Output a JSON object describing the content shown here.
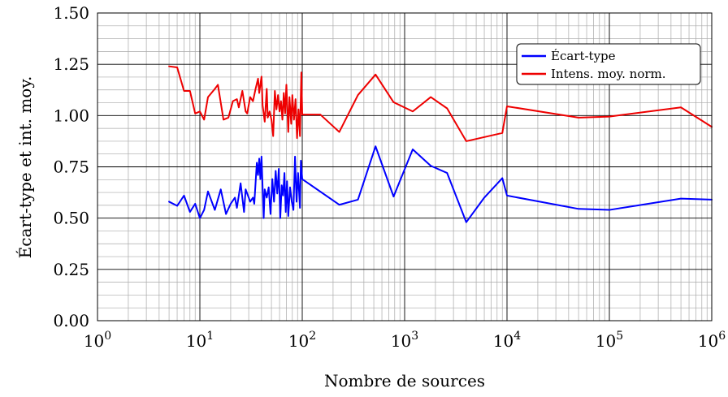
{
  "chart_data": {
    "type": "line",
    "xlabel": "Nombre de sources",
    "ylabel": "Écart-type et int. moy.",
    "xscale": "log",
    "xlim": [
      1,
      1000000
    ],
    "ylim": [
      0,
      1.5
    ],
    "grid": true,
    "legend_position": "top-right",
    "x_ticks": [
      {
        "base": "10",
        "exp": "0",
        "value": 1
      },
      {
        "base": "10",
        "exp": "1",
        "value": 10
      },
      {
        "base": "10",
        "exp": "2",
        "value": 100
      },
      {
        "base": "10",
        "exp": "3",
        "value": 1000
      },
      {
        "base": "10",
        "exp": "4",
        "value": 10000
      },
      {
        "base": "10",
        "exp": "5",
        "value": 100000
      },
      {
        "base": "10",
        "exp": "6",
        "value": 1000000
      }
    ],
    "y_ticks": [
      {
        "label": "0.00",
        "value": 0
      },
      {
        "label": "0.25",
        "value": 0.25
      },
      {
        "label": "0.50",
        "value": 0.5
      },
      {
        "label": "0.75",
        "value": 0.75
      },
      {
        "label": "1.00",
        "value": 1.0
      },
      {
        "label": "1.25",
        "value": 1.25
      },
      {
        "label": "1.50",
        "value": 1.5
      }
    ],
    "series": [
      {
        "name": "Écart-type",
        "color": "#0000ff",
        "points": [
          [
            5,
            0.58
          ],
          [
            6,
            0.56
          ],
          [
            7,
            0.61
          ],
          [
            8,
            0.53
          ],
          [
            9,
            0.57
          ],
          [
            10,
            0.5
          ],
          [
            11,
            0.54
          ],
          [
            12,
            0.63
          ],
          [
            14,
            0.54
          ],
          [
            16,
            0.64
          ],
          [
            18,
            0.52
          ],
          [
            20,
            0.57
          ],
          [
            22,
            0.6
          ],
          [
            23,
            0.55
          ],
          [
            24,
            0.61
          ],
          [
            25,
            0.67
          ],
          [
            27,
            0.53
          ],
          [
            28,
            0.64
          ],
          [
            30,
            0.6
          ],
          [
            31,
            0.58
          ],
          [
            33,
            0.6
          ],
          [
            34,
            0.57
          ],
          [
            36,
            0.77
          ],
          [
            37,
            0.71
          ],
          [
            38,
            0.79
          ],
          [
            39,
            0.69
          ],
          [
            40,
            0.8
          ],
          [
            42,
            0.5
          ],
          [
            43,
            0.64
          ],
          [
            45,
            0.6
          ],
          [
            47,
            0.65
          ],
          [
            49,
            0.52
          ],
          [
            51,
            0.69
          ],
          [
            53,
            0.58
          ],
          [
            55,
            0.73
          ],
          [
            57,
            0.62
          ],
          [
            59,
            0.74
          ],
          [
            61,
            0.5
          ],
          [
            63,
            0.66
          ],
          [
            65,
            0.61
          ],
          [
            67,
            0.72
          ],
          [
            69,
            0.53
          ],
          [
            71,
            0.68
          ],
          [
            73,
            0.51
          ],
          [
            76,
            0.65
          ],
          [
            79,
            0.58
          ],
          [
            82,
            0.54
          ],
          [
            85,
            0.8
          ],
          [
            88,
            0.58
          ],
          [
            91,
            0.72
          ],
          [
            95,
            0.55
          ],
          [
            97,
            0.78
          ],
          [
            100,
            0.69
          ],
          [
            230,
            0.565
          ],
          [
            350,
            0.59
          ],
          [
            520,
            0.85
          ],
          [
            780,
            0.605
          ],
          [
            1200,
            0.835
          ],
          [
            1800,
            0.755
          ],
          [
            2600,
            0.72
          ],
          [
            4000,
            0.48
          ],
          [
            6000,
            0.6
          ],
          [
            9000,
            0.695
          ],
          [
            10000,
            0.61
          ],
          [
            50000,
            0.545
          ],
          [
            100000,
            0.54
          ],
          [
            500000,
            0.595
          ],
          [
            1000000,
            0.59
          ]
        ]
      },
      {
        "name": "Intens. moy. norm.",
        "color": "#ee0000",
        "points": [
          [
            5,
            1.24
          ],
          [
            6,
            1.235
          ],
          [
            7,
            1.12
          ],
          [
            8,
            1.12
          ],
          [
            9,
            1.01
          ],
          [
            10,
            1.02
          ],
          [
            11,
            0.98
          ],
          [
            12,
            1.09
          ],
          [
            14,
            1.13
          ],
          [
            15,
            1.15
          ],
          [
            17,
            0.98
          ],
          [
            19,
            0.99
          ],
          [
            21,
            1.07
          ],
          [
            23,
            1.08
          ],
          [
            24,
            1.04
          ],
          [
            26,
            1.12
          ],
          [
            28,
            1.02
          ],
          [
            29,
            1.01
          ],
          [
            31,
            1.09
          ],
          [
            33,
            1.07
          ],
          [
            35,
            1.13
          ],
          [
            37,
            1.18
          ],
          [
            38,
            1.11
          ],
          [
            40,
            1.19
          ],
          [
            41,
            1.05
          ],
          [
            43,
            0.97
          ],
          [
            45,
            1.13
          ],
          [
            46,
            0.99
          ],
          [
            48,
            1.02
          ],
          [
            50,
            0.98
          ],
          [
            52,
            0.9
          ],
          [
            54,
            1.12
          ],
          [
            56,
            1.03
          ],
          [
            58,
            1.1
          ],
          [
            60,
            1.02
          ],
          [
            62,
            1.07
          ],
          [
            64,
            0.98
          ],
          [
            66,
            1.11
          ],
          [
            68,
            1.01
          ],
          [
            70,
            1.15
          ],
          [
            73,
            0.92
          ],
          [
            75,
            1.09
          ],
          [
            78,
            0.96
          ],
          [
            80,
            1.1
          ],
          [
            83,
            0.98
          ],
          [
            86,
            1.08
          ],
          [
            89,
            0.89
          ],
          [
            92,
            1.03
          ],
          [
            95,
            0.9
          ],
          [
            98,
            1.21
          ],
          [
            100,
            1.005
          ],
          [
            150,
            1.005
          ],
          [
            230,
            0.92
          ],
          [
            350,
            1.1
          ],
          [
            520,
            1.2
          ],
          [
            780,
            1.065
          ],
          [
            1200,
            1.02
          ],
          [
            1800,
            1.09
          ],
          [
            2600,
            1.035
          ],
          [
            4000,
            0.875
          ],
          [
            9000,
            0.915
          ],
          [
            10000,
            1.045
          ],
          [
            50000,
            0.99
          ],
          [
            100000,
            0.995
          ],
          [
            500000,
            1.04
          ],
          [
            1000000,
            0.945
          ]
        ]
      }
    ]
  }
}
